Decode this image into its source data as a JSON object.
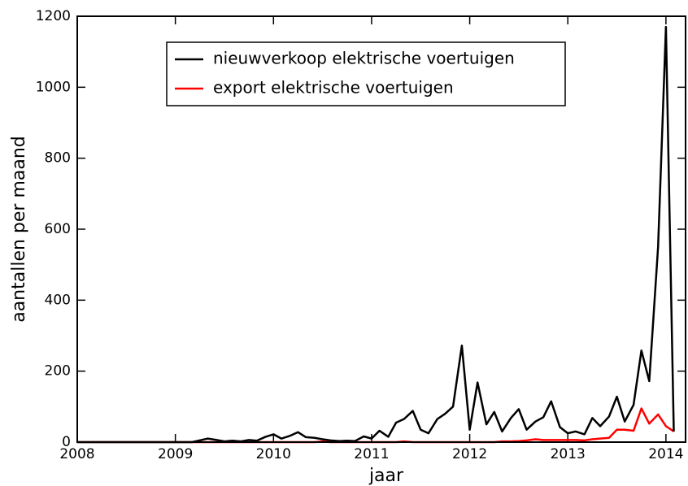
{
  "chart_data": {
    "type": "line",
    "xlabel": "jaar",
    "ylabel": "aantallen per maand",
    "x": [
      2008,
      2008.08,
      2008.17,
      2008.25,
      2008.33,
      2008.42,
      2008.5,
      2008.58,
      2008.67,
      2008.75,
      2008.83,
      2008.92,
      2009,
      2009.08,
      2009.17,
      2009.25,
      2009.33,
      2009.42,
      2009.5,
      2009.58,
      2009.67,
      2009.75,
      2009.83,
      2009.92,
      2010,
      2010.08,
      2010.17,
      2010.25,
      2010.33,
      2010.42,
      2010.5,
      2010.58,
      2010.67,
      2010.75,
      2010.83,
      2010.92,
      2011,
      2011.08,
      2011.17,
      2011.25,
      2011.33,
      2011.42,
      2011.5,
      2011.58,
      2011.67,
      2011.75,
      2011.83,
      2011.92,
      2012,
      2012.08,
      2012.17,
      2012.25,
      2012.33,
      2012.42,
      2012.5,
      2012.58,
      2012.67,
      2012.75,
      2012.83,
      2012.92,
      2013,
      2013.08,
      2013.17,
      2013.25,
      2013.33,
      2013.42,
      2013.5,
      2013.58,
      2013.67,
      2013.75,
      2013.83,
      2013.92,
      2014,
      2014.08
    ],
    "series": [
      {
        "name": "nieuwverkoop elektrische voertuigen",
        "color": "#000000",
        "values": [
          0,
          0,
          0,
          0,
          0,
          0,
          0,
          0,
          0,
          0,
          0,
          0,
          0,
          0,
          0,
          5,
          10,
          6,
          2,
          4,
          2,
          6,
          4,
          15,
          22,
          10,
          18,
          28,
          14,
          12,
          8,
          5,
          3,
          4,
          3,
          16,
          10,
          32,
          15,
          55,
          65,
          88,
          35,
          25,
          65,
          80,
          100,
          272,
          35,
          168,
          50,
          85,
          30,
          68,
          93,
          35,
          58,
          70,
          115,
          42,
          25,
          30,
          22,
          68,
          45,
          72,
          128,
          58,
          105,
          258,
          172,
          550,
          1170,
          30
        ]
      },
      {
        "name": "export elektrische voertuigen",
        "color": "#ff0000",
        "values": [
          0,
          0,
          0,
          0,
          0,
          0,
          0,
          0,
          0,
          0,
          0,
          0,
          0,
          0,
          0,
          0,
          0,
          0,
          0,
          0,
          0,
          0,
          0,
          0,
          0,
          0,
          0,
          0,
          0,
          0,
          2,
          0,
          0,
          0,
          0,
          0,
          0,
          0,
          0,
          0,
          2,
          0,
          0,
          0,
          0,
          0,
          0,
          0,
          0,
          0,
          0,
          0,
          2,
          2,
          3,
          5,
          8,
          6,
          6,
          6,
          6,
          6,
          5,
          8,
          10,
          12,
          35,
          35,
          32,
          95,
          52,
          78,
          45,
          30
        ]
      }
    ],
    "xlim": [
      2008,
      2014.2
    ],
    "ylim": [
      0,
      1200
    ],
    "xticks": [
      2008,
      2009,
      2010,
      2011,
      2012,
      2013,
      2014
    ],
    "yticks": [
      0,
      200,
      400,
      600,
      800,
      1000,
      1200
    ],
    "grid": false,
    "legend": "upper center"
  }
}
